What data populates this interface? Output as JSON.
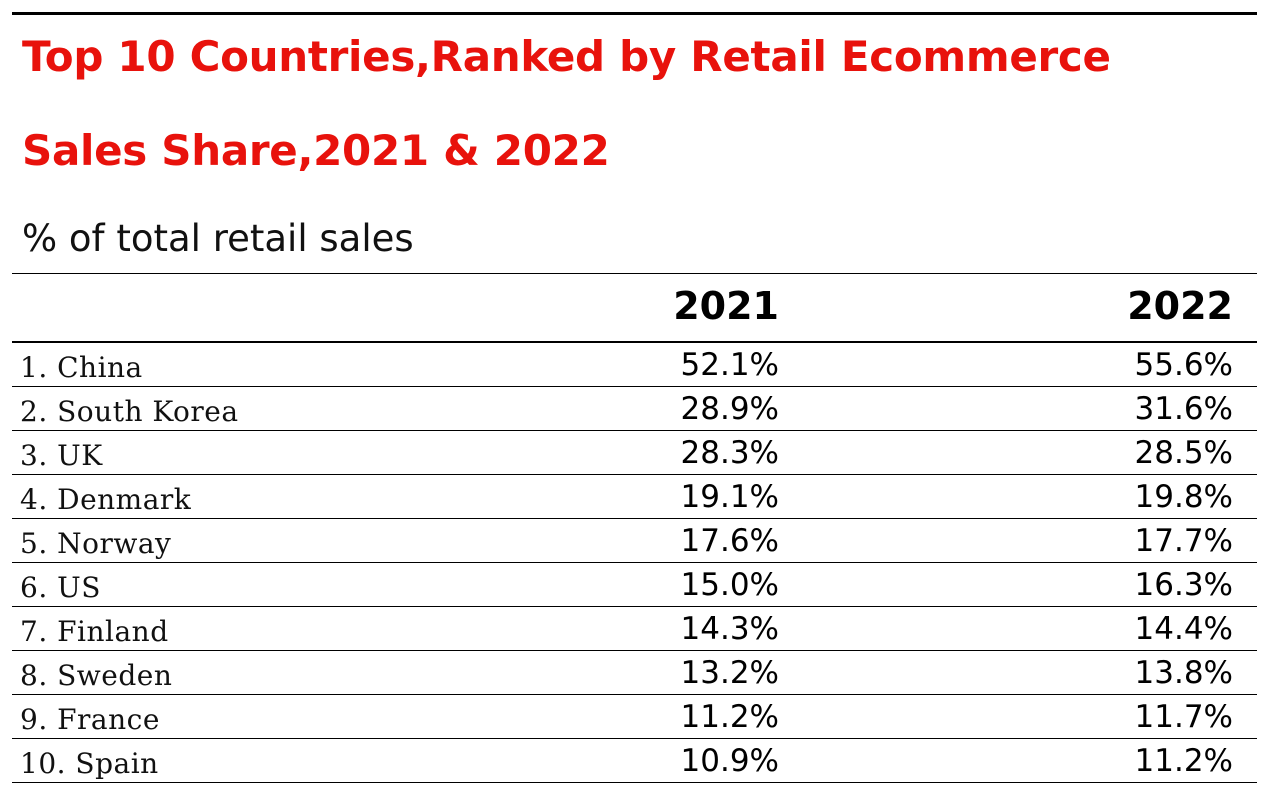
{
  "chart_data": {
    "type": "table",
    "title_lines": [
      "Top 10 Countries,Ranked by Retail Ecommerce",
      "Sales Share,2021 & 2022"
    ],
    "subtitle": "% of total retail sales",
    "columns": [
      "2021",
      "2022"
    ],
    "rows": [
      {
        "label": "1. China",
        "values": [
          "52.1%",
          "55.6%"
        ]
      },
      {
        "label": "2. South Korea",
        "values": [
          "28.9%",
          "31.6%"
        ]
      },
      {
        "label": "3. UK",
        "values": [
          "28.3%",
          "28.5%"
        ]
      },
      {
        "label": "4. Denmark",
        "values": [
          "19.1%",
          "19.8%"
        ]
      },
      {
        "label": "5. Norway",
        "values": [
          "17.6%",
          "17.7%"
        ]
      },
      {
        "label": "6. US",
        "values": [
          "15.0%",
          "16.3%"
        ]
      },
      {
        "label": "7. Finland",
        "values": [
          "14.3%",
          "14.4%"
        ]
      },
      {
        "label": "8. Sweden",
        "values": [
          "13.2%",
          "13.8%"
        ]
      },
      {
        "label": "9. France",
        "values": [
          "11.2%",
          "11.7%"
        ]
      },
      {
        "label": "10. Spain",
        "values": [
          "10.9%",
          "11.2%"
        ]
      }
    ],
    "colors": {
      "title": "#e8120c",
      "text": "#111111",
      "rules": "#000000"
    }
  }
}
